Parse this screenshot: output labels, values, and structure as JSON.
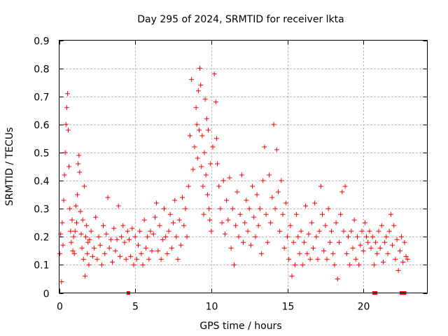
{
  "chart_data": {
    "type": "scatter",
    "title": "Day 295 of 2024, SRMTID for receiver lkta",
    "xlabel": "GPS time / hours",
    "ylabel": "SRMTID / TECUs",
    "xlim": [
      0,
      24.2
    ],
    "ylim": [
      0,
      0.9
    ],
    "x_ticks": [
      0,
      5,
      10,
      15,
      20
    ],
    "x_tick_labels": [
      "0",
      "5",
      "10",
      "15",
      "20"
    ],
    "y_ticks": [
      0,
      0.1,
      0.2,
      0.3,
      0.4,
      0.5,
      0.6,
      0.7,
      0.8,
      0.9
    ],
    "y_tick_labels": [
      "0",
      "0.1",
      "0.2",
      "0.3",
      "0.4",
      "0.5",
      "0.6",
      "0.7",
      "0.8",
      "0.9"
    ],
    "grid": true,
    "legend": "none",
    "marker": "+",
    "series_color": "#ff0000",
    "series": [
      {
        "name": "SRMTID",
        "points": [
          [
            0.05,
            0.14
          ],
          [
            0.1,
            0.21
          ],
          [
            0.15,
            0.04
          ],
          [
            0.2,
            0.25
          ],
          [
            0.25,
            0.17
          ],
          [
            0.3,
            0.33
          ],
          [
            0.35,
            0.42
          ],
          [
            0.4,
            0.5
          ],
          [
            0.45,
            0.6
          ],
          [
            0.5,
            0.66
          ],
          [
            0.55,
            0.71
          ],
          [
            0.6,
            0.58
          ],
          [
            0.65,
            0.45
          ],
          [
            0.7,
            0.3
          ],
          [
            0.75,
            0.22
          ],
          [
            0.8,
            0.18
          ],
          [
            0.85,
            0.26
          ],
          [
            0.9,
            0.15
          ],
          [
            0.95,
            0.2
          ],
          [
            1.0,
            0.14
          ],
          [
            1.05,
            0.22
          ],
          [
            1.1,
            0.31
          ],
          [
            1.15,
            0.25
          ],
          [
            1.2,
            0.35
          ],
          [
            1.25,
            0.46
          ],
          [
            1.3,
            0.49
          ],
          [
            1.35,
            0.43
          ],
          [
            1.4,
            0.29
          ],
          [
            1.45,
            0.21
          ],
          [
            1.5,
            0.16
          ],
          [
            1.55,
            0.26
          ],
          [
            1.6,
            0.12
          ],
          [
            1.65,
            0.38
          ],
          [
            1.7,
            0.06
          ],
          [
            1.75,
            0.2
          ],
          [
            1.8,
            0.24
          ],
          [
            1.85,
            0.14
          ],
          [
            1.9,
            0.18
          ],
          [
            1.95,
            0.1
          ],
          [
            2.0,
            0.19
          ],
          [
            2.1,
            0.22
          ],
          [
            2.2,
            0.13
          ],
          [
            2.3,
            0.16
          ],
          [
            2.4,
            0.27
          ],
          [
            2.5,
            0.12
          ],
          [
            2.6,
            0.2
          ],
          [
            2.7,
            0.17
          ],
          [
            2.8,
            0.1
          ],
          [
            2.9,
            0.24
          ],
          [
            3.0,
            0.14
          ],
          [
            3.1,
            0.21
          ],
          [
            3.2,
            0.34
          ],
          [
            3.3,
            0.16
          ],
          [
            3.4,
            0.19
          ],
          [
            3.5,
            0.11
          ],
          [
            3.6,
            0.23
          ],
          [
            3.7,
            0.15
          ],
          [
            3.8,
            0.19
          ],
          [
            3.9,
            0.31
          ],
          [
            4.0,
            0.13
          ],
          [
            4.1,
            0.2
          ],
          [
            4.2,
            0.24
          ],
          [
            4.3,
            0.18
          ],
          [
            4.4,
            0.12
          ],
          [
            4.5,
            0.22
          ],
          [
            4.6,
            0.19
          ],
          [
            4.7,
            0.13
          ],
          [
            4.8,
            0.23
          ],
          [
            4.9,
            0.1
          ],
          [
            5.0,
            0.2
          ],
          [
            5.1,
            0.12
          ],
          [
            5.2,
            0.17
          ],
          [
            5.3,
            0.22
          ],
          [
            5.4,
            0.14
          ],
          [
            5.5,
            0.1
          ],
          [
            5.6,
            0.26
          ],
          [
            5.7,
            0.16
          ],
          [
            5.8,
            0.2
          ],
          [
            5.9,
            0.12
          ],
          [
            6.0,
            0.22
          ],
          [
            6.1,
            0.15
          ],
          [
            6.2,
            0.21
          ],
          [
            6.3,
            0.27
          ],
          [
            6.4,
            0.32
          ],
          [
            6.5,
            0.15
          ],
          [
            6.6,
            0.24
          ],
          [
            6.7,
            0.12
          ],
          [
            6.8,
            0.19
          ],
          [
            6.9,
            0.3
          ],
          [
            7.0,
            0.2
          ],
          [
            7.1,
            0.14
          ],
          [
            7.2,
            0.22
          ],
          [
            7.3,
            0.28
          ],
          [
            7.4,
            0.16
          ],
          [
            7.5,
            0.25
          ],
          [
            7.6,
            0.33
          ],
          [
            7.7,
            0.2
          ],
          [
            7.8,
            0.12
          ],
          [
            7.9,
            0.26
          ],
          [
            8.0,
            0.17
          ],
          [
            8.1,
            0.34
          ],
          [
            8.2,
            0.24
          ],
          [
            8.3,
            0.3
          ],
          [
            8.4,
            0.2
          ],
          [
            8.5,
            0.38
          ],
          [
            8.6,
            0.56
          ],
          [
            8.7,
            0.76
          ],
          [
            8.8,
            0.44
          ],
          [
            8.9,
            0.52
          ],
          [
            9.0,
            0.66
          ],
          [
            9.05,
            0.6
          ],
          [
            9.1,
            0.48
          ],
          [
            9.15,
            0.72
          ],
          [
            9.2,
            0.58
          ],
          [
            9.25,
            0.8
          ],
          [
            9.3,
            0.74
          ],
          [
            9.35,
            0.45
          ],
          [
            9.4,
            0.56
          ],
          [
            9.45,
            0.38
          ],
          [
            9.5,
            0.28
          ],
          [
            9.55,
            0.5
          ],
          [
            9.6,
            0.69
          ],
          [
            9.65,
            0.42
          ],
          [
            9.7,
            0.62
          ],
          [
            9.75,
            0.35
          ],
          [
            9.8,
            0.58
          ],
          [
            9.85,
            0.3
          ],
          [
            9.9,
            0.26
          ],
          [
            9.95,
            0.46
          ],
          [
            10.0,
            0.22
          ],
          [
            10.1,
            0.52
          ],
          [
            10.2,
            0.78
          ],
          [
            10.3,
            0.68
          ],
          [
            10.35,
            0.55
          ],
          [
            10.4,
            0.46
          ],
          [
            10.5,
            0.38
          ],
          [
            10.6,
            0.3
          ],
          [
            10.7,
            0.25
          ],
          [
            10.8,
            0.4
          ],
          [
            10.9,
            0.21
          ],
          [
            11.0,
            0.33
          ],
          [
            11.1,
            0.26
          ],
          [
            11.2,
            0.41
          ],
          [
            11.3,
            0.16
          ],
          [
            11.4,
            0.3
          ],
          [
            11.5,
            0.1
          ],
          [
            11.6,
            0.24
          ],
          [
            11.7,
            0.36
          ],
          [
            11.8,
            0.2
          ],
          [
            11.9,
            0.28
          ],
          [
            12.0,
            0.42
          ],
          [
            12.1,
            0.18
          ],
          [
            12.2,
            0.25
          ],
          [
            12.3,
            0.33
          ],
          [
            12.4,
            0.22
          ],
          [
            12.5,
            0.3
          ],
          [
            12.6,
            0.17
          ],
          [
            12.7,
            0.38
          ],
          [
            12.8,
            0.27
          ],
          [
            12.9,
            0.2
          ],
          [
            13.0,
            0.35
          ],
          [
            13.1,
            0.24
          ],
          [
            13.2,
            0.3
          ],
          [
            13.3,
            0.14
          ],
          [
            13.4,
            0.4
          ],
          [
            13.5,
            0.52
          ],
          [
            13.6,
            0.28
          ],
          [
            13.7,
            0.18
          ],
          [
            13.8,
            0.42
          ],
          [
            13.9,
            0.25
          ],
          [
            14.0,
            0.34
          ],
          [
            14.1,
            0.6
          ],
          [
            14.2,
            0.3
          ],
          [
            14.3,
            0.51
          ],
          [
            14.4,
            0.36
          ],
          [
            14.5,
            0.22
          ],
          [
            14.6,
            0.4
          ],
          [
            14.7,
            0.28
          ],
          [
            14.8,
            0.16
          ],
          [
            14.9,
            0.32
          ],
          [
            15.0,
            0.2
          ],
          [
            15.1,
            0.12
          ],
          [
            15.2,
            0.24
          ],
          [
            15.3,
            0.06
          ],
          [
            15.4,
            0.18
          ],
          [
            15.5,
            0.1
          ],
          [
            15.6,
            0.28
          ],
          [
            15.7,
            0.2
          ],
          [
            15.8,
            0.14
          ],
          [
            15.9,
            0.22
          ],
          [
            16.0,
            0.1
          ],
          [
            16.1,
            0.18
          ],
          [
            16.2,
            0.31
          ],
          [
            16.3,
            0.14
          ],
          [
            16.4,
            0.21
          ],
          [
            16.5,
            0.12
          ],
          [
            16.6,
            0.25
          ],
          [
            16.7,
            0.16
          ],
          [
            16.8,
            0.32
          ],
          [
            16.9,
            0.2
          ],
          [
            17.0,
            0.12
          ],
          [
            17.1,
            0.22
          ],
          [
            17.2,
            0.38
          ],
          [
            17.3,
            0.28
          ],
          [
            17.4,
            0.15
          ],
          [
            17.5,
            0.24
          ],
          [
            17.6,
            0.12
          ],
          [
            17.7,
            0.3
          ],
          [
            17.8,
            0.18
          ],
          [
            17.9,
            0.22
          ],
          [
            18.0,
            0.14
          ],
          [
            18.1,
            0.1
          ],
          [
            18.2,
            0.25
          ],
          [
            18.3,
            0.05
          ],
          [
            18.4,
            0.18
          ],
          [
            18.5,
            0.28
          ],
          [
            18.6,
            0.36
          ],
          [
            18.7,
            0.22
          ],
          [
            18.8,
            0.38
          ],
          [
            18.9,
            0.14
          ],
          [
            19.0,
            0.2
          ],
          [
            19.1,
            0.1
          ],
          [
            19.2,
            0.22
          ],
          [
            19.3,
            0.16
          ],
          [
            19.4,
            0.26
          ],
          [
            19.5,
            0.12
          ],
          [
            19.6,
            0.2
          ],
          [
            19.7,
            0.1
          ],
          [
            19.8,
            0.17
          ],
          [
            19.9,
            0.22
          ],
          [
            20.0,
            0.15
          ],
          [
            20.1,
            0.25
          ],
          [
            20.2,
            0.2
          ],
          [
            20.3,
            0.18
          ],
          [
            20.4,
            0.22
          ],
          [
            20.5,
            0.16
          ],
          [
            20.6,
            0.2
          ],
          [
            20.7,
            0.1
          ],
          [
            20.8,
            0.18
          ],
          [
            20.9,
            0.14
          ],
          [
            21.0,
            0.22
          ],
          [
            21.1,
            0.16
          ],
          [
            21.2,
            0.24
          ],
          [
            21.3,
            0.11
          ],
          [
            21.4,
            0.18
          ],
          [
            21.5,
            0.2
          ],
          [
            21.6,
            0.14
          ],
          [
            21.7,
            0.22
          ],
          [
            21.8,
            0.28
          ],
          [
            21.9,
            0.17
          ],
          [
            22.0,
            0.24
          ],
          [
            22.1,
            0.12
          ],
          [
            22.2,
            0.19
          ],
          [
            22.3,
            0.08
          ],
          [
            22.4,
            0.15
          ],
          [
            22.5,
            0.2
          ],
          [
            22.6,
            0.11
          ],
          [
            22.7,
            0.18
          ],
          [
            22.8,
            0.13
          ],
          [
            22.9,
            0.12
          ]
        ]
      }
    ],
    "zero_markers": [
      4.55,
      20.7,
      20.8,
      22.5,
      22.55,
      22.7
    ]
  }
}
